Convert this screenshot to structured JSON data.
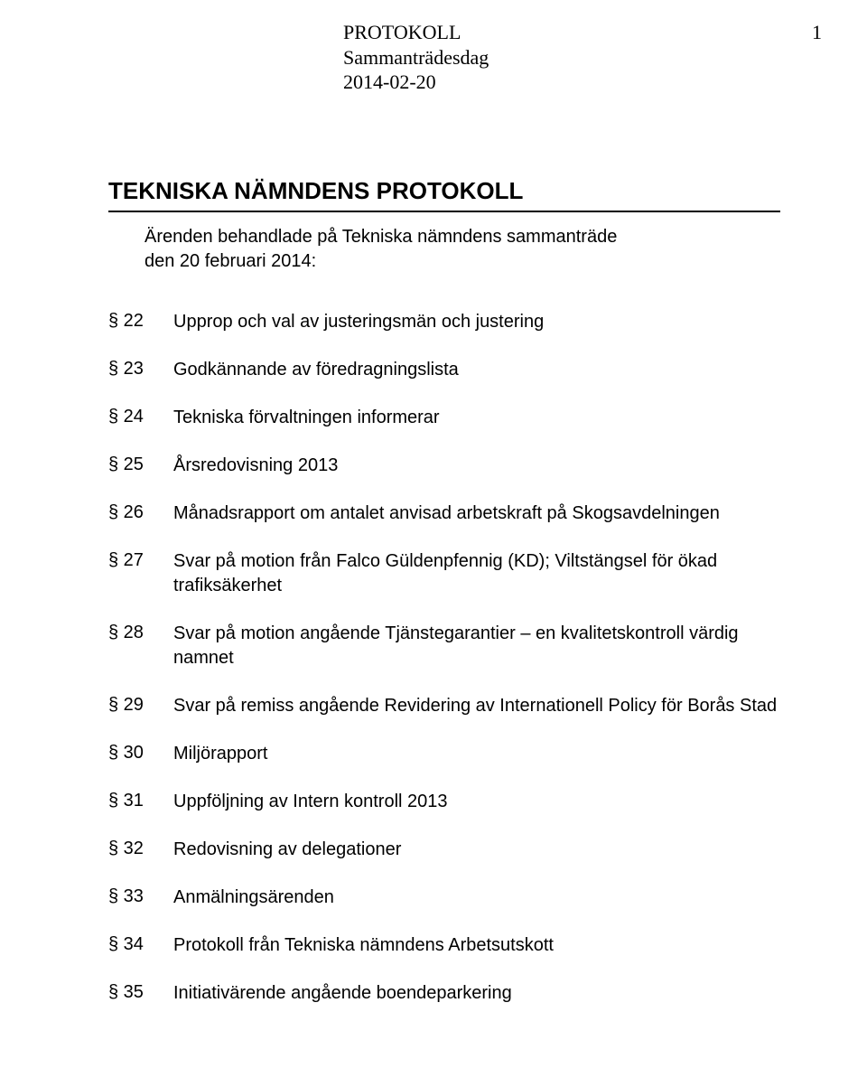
{
  "header": {
    "line1": "PROTOKOLL",
    "line2": "Sammanträdesdag",
    "line3": "2014-02-20",
    "page_number": "1"
  },
  "title": "TEKNISKA NÄMNDENS PROTOKOLL",
  "subtitle_line1": "Ärenden behandlade på Tekniska nämndens sammanträde",
  "subtitle_line2": "den 20 februari 2014:",
  "agenda": [
    {
      "num": "§ 22",
      "text": "Upprop och val av justeringsmän och justering"
    },
    {
      "num": "§ 23",
      "text": "Godkännande av föredragningslista"
    },
    {
      "num": "§ 24",
      "text": "Tekniska förvaltningen informerar"
    },
    {
      "num": "§ 25",
      "text": "Årsredovisning 2013"
    },
    {
      "num": "§ 26",
      "text": "Månadsrapport om antalet anvisad arbetskraft på Skogsavdelningen"
    },
    {
      "num": "§ 27",
      "text": "Svar på motion från Falco Güldenpfennig (KD); Viltstängsel för ökad trafiksäkerhet"
    },
    {
      "num": "§ 28",
      "text": "Svar på motion angående Tjänstegarantier – en kvalitetskontroll värdig namnet"
    },
    {
      "num": "§ 29",
      "text": "Svar på remiss angående Revidering av Internationell Policy för Borås Stad"
    },
    {
      "num": "§ 30",
      "text": "Miljörapport"
    },
    {
      "num": "§ 31",
      "text": "Uppföljning av Intern kontroll 2013"
    },
    {
      "num": "§ 32",
      "text": " Redovisning av delegationer"
    },
    {
      "num": "§ 33",
      "text": "Anmälningsärenden"
    },
    {
      "num": "§ 34",
      "text": "Protokoll från Tekniska nämndens Arbetsutskott"
    },
    {
      "num": "§ 35",
      "text": "Initiativärende angående boendeparkering"
    }
  ]
}
